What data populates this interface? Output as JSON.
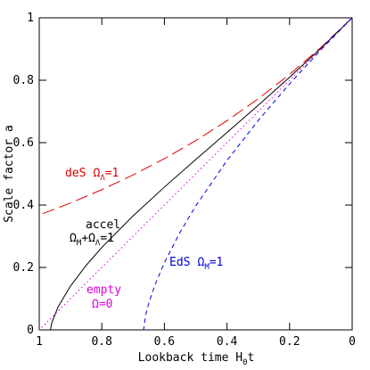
{
  "chart_data": {
    "type": "line",
    "ylabel": "Scale factor a",
    "xlabel": [
      "Lookback time H",
      "0",
      "t"
    ],
    "xlim": [
      1,
      0
    ],
    "ylim": [
      0,
      1
    ],
    "xticks": [
      1,
      0.8,
      0.6,
      0.4,
      0.2,
      0
    ],
    "yticks": [
      0,
      0.2,
      0.4,
      0.6,
      0.8,
      1
    ],
    "series": [
      {
        "name": "deS",
        "color": "#e00000",
        "dash": "14 6",
        "annotation": [
          "Ω",
          "Λ",
          "=1"
        ],
        "x": [
          0,
          0.1,
          0.2,
          0.3,
          0.4,
          0.5,
          0.6,
          0.7,
          0.8,
          0.9,
          1
        ],
        "values": [
          1,
          0.9048,
          0.8187,
          0.7408,
          0.6703,
          0.6065,
          0.5488,
          0.4966,
          0.4493,
          0.4066,
          0.3679
        ]
      },
      {
        "name": "accel",
        "color": "#000000",
        "dash": "none",
        "annotation": [
          "Ω",
          "M",
          "+Ω",
          "Λ",
          "=1"
        ],
        "x": [
          0,
          0.1,
          0.2,
          0.3,
          0.4,
          0.5,
          0.6,
          0.7,
          0.8,
          0.85,
          0.9,
          0.94,
          0.96,
          0.9641
        ],
        "values": [
          1,
          0.9026,
          0.8096,
          0.72,
          0.6325,
          0.5458,
          0.4577,
          0.3655,
          0.2642,
          0.2068,
          0.1406,
          0.0732,
          0.0225,
          0
        ]
      },
      {
        "name": "empty",
        "color": "#e000e0",
        "dash": "1.5 3",
        "annotation": [
          "Ω=0"
        ],
        "x": [
          0,
          1
        ],
        "values": [
          1,
          0
        ]
      },
      {
        "name": "EdS",
        "color": "#0000e0",
        "dash": "5 4",
        "annotation": [
          "Ω",
          "M",
          "=1"
        ],
        "x": [
          0,
          0.1,
          0.2,
          0.3,
          0.4,
          0.5,
          0.55,
          0.6,
          0.63,
          0.65,
          0.66,
          0.6667
        ],
        "values": [
          1,
          0.8973,
          0.7884,
          0.6713,
          0.5429,
          0.3969,
          0.3128,
          0.2154,
          0.1446,
          0.0855,
          0.0464,
          0
        ]
      }
    ]
  }
}
